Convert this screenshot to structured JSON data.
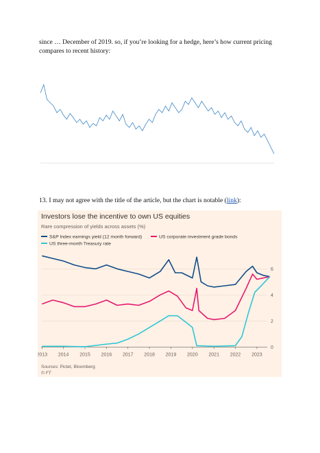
{
  "paragraphs": [
    "since … December of 2019.  so, if you’re looking for a hedge, here’s how current pricing compares to recent history:"
  ],
  "paragraph2": {
    "text": "13. I may not agree with the title of the article, but the chart is notable (",
    "link": "link",
    "end": "):"
  },
  "chart_data": [
    {
      "type": "line",
      "color": "#3d86c6",
      "ylim": [
        0,
        100
      ],
      "values": [
        82,
        92,
        74,
        70,
        66,
        58,
        62,
        55,
        50,
        57,
        52,
        46,
        50,
        44,
        48,
        40,
        45,
        42,
        52,
        48,
        55,
        50,
        60,
        54,
        48,
        56,
        44,
        40,
        46,
        38,
        42,
        36,
        44,
        50,
        46,
        56,
        62,
        58,
        66,
        60,
        70,
        64,
        58,
        62,
        72,
        68,
        76,
        70,
        64,
        72,
        66,
        60,
        64,
        56,
        60,
        52,
        58,
        50,
        54,
        46,
        42,
        48,
        38,
        34,
        40,
        30,
        36,
        28,
        32,
        24,
        16,
        8
      ]
    },
    {
      "type": "line",
      "title": "Investors lose the incentive to own US equities",
      "subtitle": "Rare compression of yields across assets (%)",
      "source": "Sources: Pictet, Bloomberg",
      "credit": "© FT",
      "xlim": [
        2012.8,
        2023.8
      ],
      "xticks": [
        2013,
        2014,
        2015,
        2016,
        2017,
        2018,
        2019,
        2020,
        2021,
        2022,
        2023
      ],
      "ylim": [
        -0.3,
        6.7
      ],
      "yticks": [
        0,
        2,
        4,
        6
      ],
      "grid": true,
      "series": [
        {
          "name": "S&P Index earnings yield (12 month forward)",
          "color": "#0f4c8a",
          "x": [
            2013,
            2013.5,
            2014,
            2014.5,
            2015,
            2015.5,
            2016,
            2016.5,
            2017,
            2017.5,
            2018,
            2018.5,
            2018.9,
            2019.2,
            2019.5,
            2020,
            2020.2,
            2020.4,
            2020.7,
            2021,
            2021.5,
            2022,
            2022.5,
            2022.8,
            2023,
            2023.3,
            2023.6
          ],
          "values": [
            7.0,
            6.8,
            6.6,
            6.3,
            6.1,
            6.0,
            6.3,
            6.0,
            5.8,
            5.6,
            5.3,
            5.8,
            6.7,
            5.7,
            5.7,
            5.3,
            6.9,
            5.0,
            4.7,
            4.6,
            4.7,
            4.8,
            5.8,
            6.2,
            5.7,
            5.5,
            5.4
          ]
        },
        {
          "name": "US corporate investment grade bonds",
          "color": "#e5176f",
          "x": [
            2013,
            2013.5,
            2014,
            2014.5,
            2015,
            2015.5,
            2016,
            2016.5,
            2017,
            2017.5,
            2018,
            2018.5,
            2018.9,
            2019.3,
            2019.7,
            2020,
            2020.2,
            2020.3,
            2020.7,
            2021,
            2021.5,
            2022,
            2022.5,
            2022.8,
            2023,
            2023.3,
            2023.6
          ],
          "values": [
            3.3,
            3.6,
            3.4,
            3.1,
            3.1,
            3.3,
            3.6,
            3.2,
            3.3,
            3.2,
            3.5,
            4.0,
            4.3,
            3.9,
            3.0,
            2.8,
            4.5,
            2.8,
            2.2,
            2.1,
            2.2,
            2.8,
            4.5,
            5.6,
            5.2,
            5.3,
            5.4
          ]
        },
        {
          "name": "US three-month Treasury rate",
          "color": "#2ec6d6",
          "x": [
            2013,
            2014,
            2015,
            2015.9,
            2016.5,
            2017,
            2017.5,
            2018,
            2018.5,
            2018.9,
            2019.3,
            2019.7,
            2020,
            2020.2,
            2021,
            2022,
            2022.3,
            2022.6,
            2022.9,
            2023.2,
            2023.6
          ],
          "values": [
            0.05,
            0.05,
            0.02,
            0.2,
            0.3,
            0.6,
            1.0,
            1.5,
            2.0,
            2.4,
            2.4,
            1.9,
            1.5,
            0.1,
            0.05,
            0.1,
            0.8,
            2.6,
            4.2,
            4.7,
            5.4
          ]
        }
      ]
    }
  ]
}
